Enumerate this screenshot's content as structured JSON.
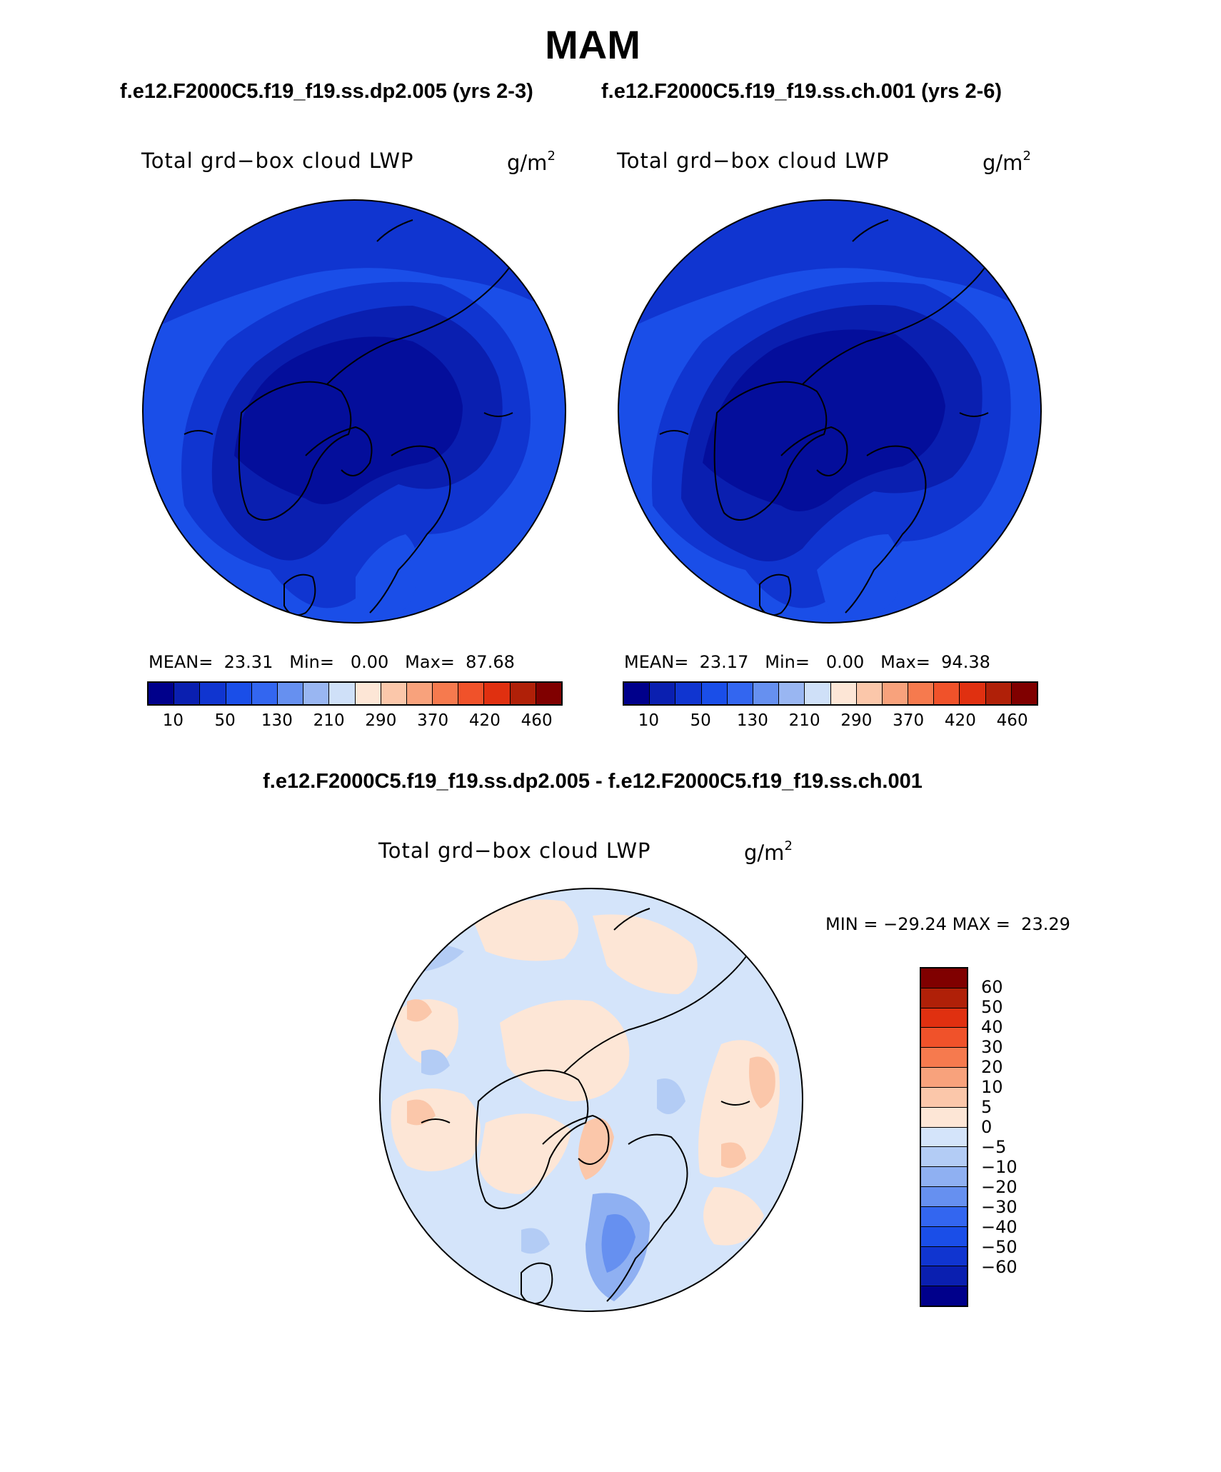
{
  "title": "MAM",
  "top_panels": [
    {
      "case": "f.e12.F2000C5.f19_f19.ss.dp2.005 (yrs 2-3)",
      "field": "Total grd−box cloud LWP",
      "units_base": "g/m",
      "units_exp": "2",
      "mean_label": "MEAN=",
      "mean": "23.31",
      "min_label": "Min=",
      "min": "0.00",
      "max_label": "Max=",
      "max": "87.68"
    },
    {
      "case": "f.e12.F2000C5.f19_f19.ss.ch.001 (yrs 2-6)",
      "field": "Total grd−box cloud LWP",
      "units_base": "g/m",
      "units_exp": "2",
      "mean_label": "MEAN=",
      "mean": "23.17",
      "min_label": "Min=",
      "min": "0.00",
      "max_label": "Max=",
      "max": "94.38"
    }
  ],
  "colorbar_top": {
    "colors": [
      "#00008b",
      "#0a1fb0",
      "#1035d0",
      "#1a4ee8",
      "#3366f0",
      "#6690f0",
      "#99b6f2",
      "#cfe0f8",
      "#fde6d6",
      "#fbc7aa",
      "#f8a27c",
      "#f67a4e",
      "#f0522a",
      "#e03010",
      "#b02008",
      "#800000"
    ],
    "tick_labels": [
      "10",
      "50",
      "130",
      "210",
      "290",
      "370",
      "420",
      "460"
    ]
  },
  "diff_panel": {
    "case": "f.e12.F2000C5.f19_f19.ss.dp2.005 - f.e12.F2000C5.f19_f19.ss.ch.001",
    "field": "Total grd−box cloud LWP",
    "units_base": "g/m",
    "units_exp": "2",
    "min_label": "MIN =",
    "min": "−29.24",
    "max_label": "MAX =",
    "max": "23.29"
  },
  "colorbar_diff": {
    "colors_top_to_bottom": [
      "#800000",
      "#b02008",
      "#e03010",
      "#f0522a",
      "#f67a4e",
      "#f8a27c",
      "#fbc7aa",
      "#fde6d6",
      "#d4e4fa",
      "#b3ccf5",
      "#8fb0f2",
      "#6690f0",
      "#3366f0",
      "#1a4ee8",
      "#1035d0",
      "#0a1fb0",
      "#00008b"
    ],
    "tick_labels": [
      "60",
      "50",
      "40",
      "30",
      "20",
      "10",
      "5",
      "0",
      "−5",
      "−10",
      "−20",
      "−30",
      "−40",
      "−50",
      "−60"
    ]
  }
}
